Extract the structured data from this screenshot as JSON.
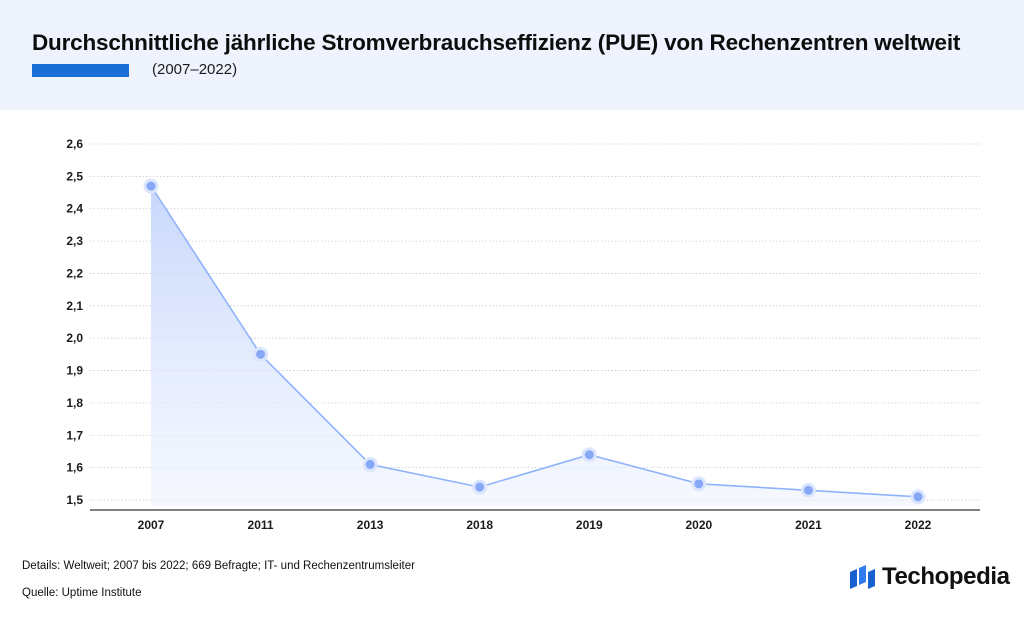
{
  "header": {
    "title": "Durchschnittliche jährliche Stromverbrauchseffizienz (PUE) von Rechenzentren weltweit",
    "subtitle": "(2007–2022)"
  },
  "footer": {
    "details": "Details: Weltweit; 2007 bis 2022; 669 Befragte; IT- und Rechenzentrumsleiter",
    "source": "Quelle: Uptime Institute"
  },
  "brand": {
    "name": "Techopedia",
    "logo_icon": "techopedia-cubes-icon"
  },
  "colors": {
    "header_bg": "#eef3fd",
    "accent": "#1a6fd6",
    "line": "#8fb3fb",
    "marker": "#86a8f6",
    "area": "#c9d8fb"
  },
  "chart_data": {
    "type": "area",
    "categories": [
      "2007",
      "2011",
      "2013",
      "2018",
      "2019",
      "2020",
      "2021",
      "2022"
    ],
    "values": [
      2.47,
      1.95,
      1.61,
      1.54,
      1.64,
      1.55,
      1.53,
      1.51
    ],
    "y_ticks": [
      "1,5",
      "1,6",
      "1,7",
      "1,8",
      "1,9",
      "2,0",
      "2,1",
      "2,2",
      "2,3",
      "2,4",
      "2,5",
      "2,6"
    ],
    "ylim": [
      1.5,
      2.6
    ],
    "grid": true,
    "xlabel": "",
    "ylabel": ""
  }
}
